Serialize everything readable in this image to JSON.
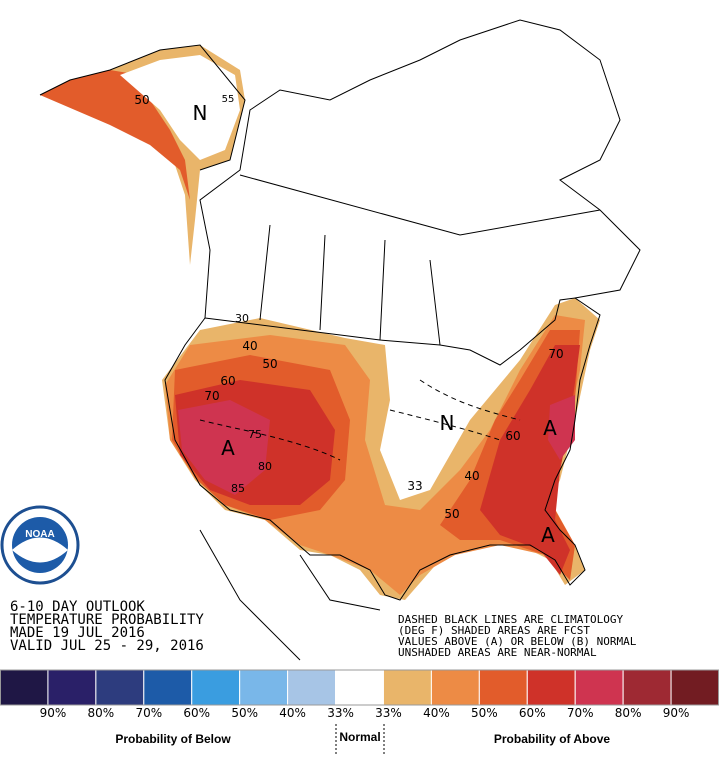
{
  "header": {
    "lines": [
      "6-10 DAY OUTLOOK",
      "TEMPERATURE PROBABILITY",
      "MADE  19 JUL 2016",
      "VALID  JUL 25 - 29, 2016"
    ]
  },
  "notes": [
    "DASHED BLACK LINES ARE CLIMATOLOGY",
    "(DEG F) SHADED AREAS ARE FCST",
    "VALUES ABOVE (A) OR BELOW (B) NORMAL",
    "UNSHADED AREAS ARE NEAR-NORMAL"
  ],
  "logo": "NOAA",
  "map_labels": [
    "N",
    "A",
    "40",
    "50",
    "60",
    "70",
    "75",
    "80",
    "85",
    "33",
    "N",
    "A",
    "A",
    "40",
    "50",
    "60",
    "70",
    "30",
    "50",
    "55"
  ],
  "legend": {
    "colors": [
      "#1f1745",
      "#2a2068",
      "#2d3c7e",
      "#1d5ba8",
      "#3a9de0",
      "#79b7e9",
      "#a7c5e6",
      "#ffffff",
      "#e9b56a",
      "#ed8b45",
      "#e25c2b",
      "#cf3229",
      "#cf3450",
      "#9e2933",
      "#721c22"
    ],
    "labels": [
      "90%",
      "80%",
      "70%",
      "60%",
      "50%",
      "40%",
      "33%",
      "33%",
      "40%",
      "50%",
      "60%",
      "70%",
      "80%",
      "90%"
    ],
    "below_title": "Probability of Below",
    "normal_title": "Normal",
    "above_title": "Probability of Above"
  }
}
